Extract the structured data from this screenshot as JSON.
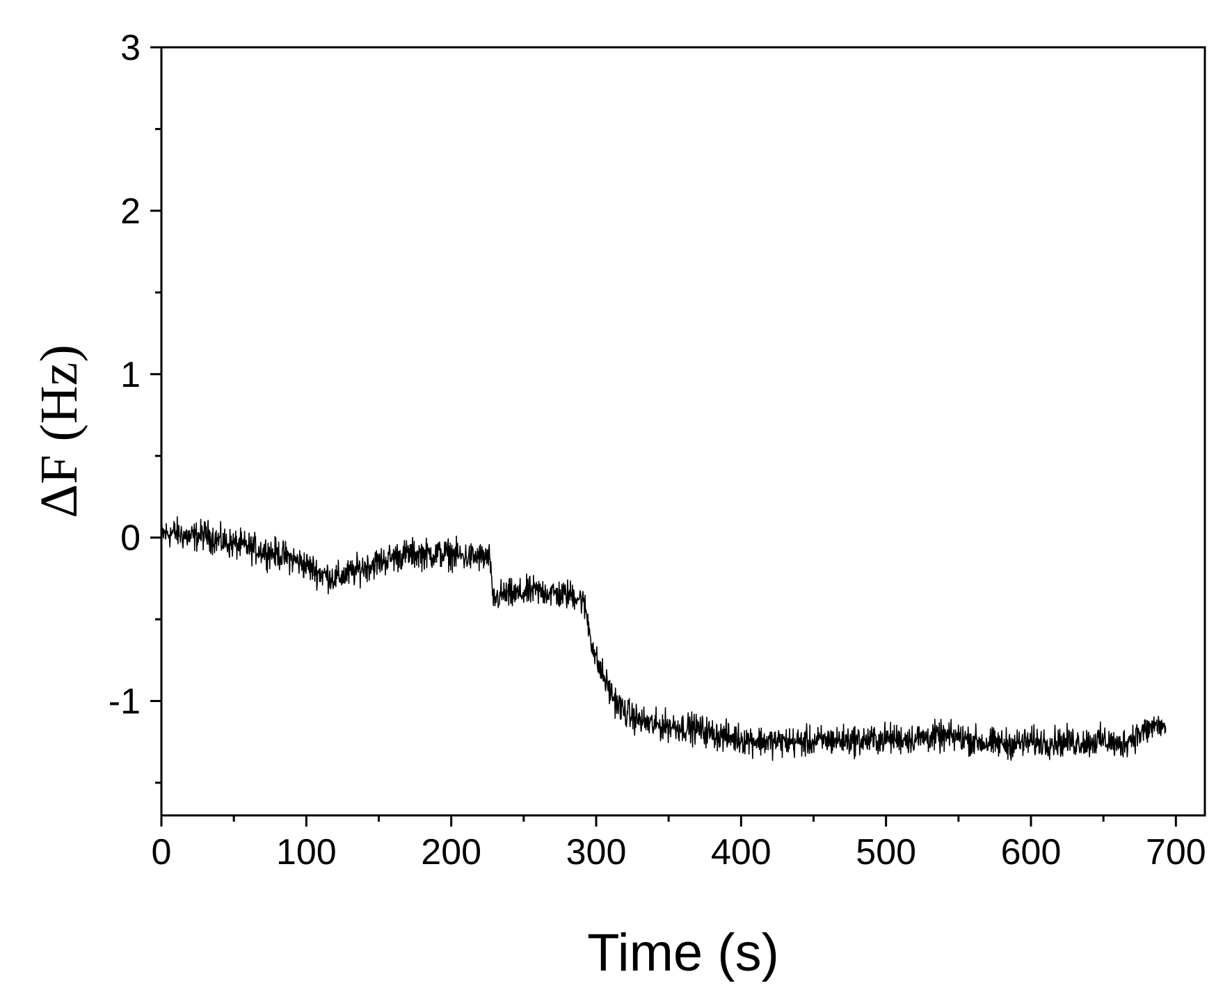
{
  "chart_data": {
    "type": "line",
    "title": "",
    "xlabel": "Time (s)",
    "ylabel": "ΔF (Hz)",
    "xlim": [
      0,
      720
    ],
    "ylim": [
      -1.7,
      3
    ],
    "xticks": [
      0,
      100,
      200,
      300,
      400,
      500,
      600,
      700
    ],
    "yticks": [
      -1,
      0,
      1,
      2,
      3
    ],
    "x_minor_step": 50,
    "y_minor_step": 0.5,
    "grid": false,
    "legend": "none",
    "line_color": "#000000",
    "series": [
      {
        "x": [
          0,
          10,
          20,
          30,
          40,
          50,
          60,
          70,
          80,
          90,
          100,
          110,
          120,
          130,
          140,
          150,
          160,
          170,
          180,
          190,
          200,
          210,
          220,
          227,
          228,
          229,
          235,
          245,
          255,
          265,
          275,
          285,
          290,
          293,
          296,
          300,
          305,
          310,
          315,
          320,
          330,
          340,
          350,
          360,
          370,
          380,
          390,
          400,
          410,
          420,
          430,
          440,
          450,
          460,
          470,
          480,
          490,
          500,
          510,
          520,
          530,
          540,
          550,
          560,
          570,
          580,
          590,
          600,
          610,
          620,
          630,
          640,
          650,
          655,
          660,
          665,
          670,
          675,
          680,
          685,
          690,
          693
        ],
        "y": [
          0.02,
          0.03,
          0.0,
          0.02,
          -0.02,
          -0.04,
          -0.06,
          -0.08,
          -0.1,
          -0.13,
          -0.17,
          -0.22,
          -0.25,
          -0.22,
          -0.18,
          -0.15,
          -0.12,
          -0.1,
          -0.1,
          -0.1,
          -0.1,
          -0.12,
          -0.12,
          -0.13,
          -0.35,
          -0.38,
          -0.35,
          -0.35,
          -0.33,
          -0.33,
          -0.35,
          -0.35,
          -0.38,
          -0.45,
          -0.6,
          -0.75,
          -0.85,
          -0.95,
          -1.02,
          -1.07,
          -1.12,
          -1.15,
          -1.15,
          -1.16,
          -1.17,
          -1.2,
          -1.22,
          -1.23,
          -1.24,
          -1.25,
          -1.25,
          -1.25,
          -1.25,
          -1.24,
          -1.24,
          -1.24,
          -1.24,
          -1.23,
          -1.23,
          -1.23,
          -1.22,
          -1.22,
          -1.22,
          -1.24,
          -1.26,
          -1.26,
          -1.26,
          -1.25,
          -1.25,
          -1.25,
          -1.25,
          -1.25,
          -1.24,
          -1.25,
          -1.28,
          -1.25,
          -1.22,
          -1.2,
          -1.18,
          -1.15,
          -1.15,
          -1.17
        ]
      }
    ]
  }
}
